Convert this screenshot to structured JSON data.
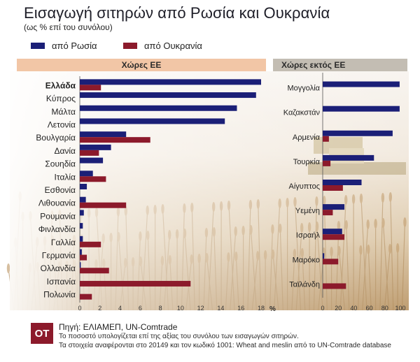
{
  "title": "Εισαγωγή σιτηρών από Ρωσία και Ουκρανία",
  "subtitle": "(ως % επί του συνόλου)",
  "legend": [
    {
      "label": "από Ρωσία",
      "color": "#1b1f77"
    },
    {
      "label": "από Ουκρανία",
      "color": "#8c1a2b"
    }
  ],
  "panels": {
    "eu_title": "Χώρες ΕΕ",
    "non_eu_title": "Χώρες εκτός ΕΕ"
  },
  "chart_data": [
    {
      "type": "bar",
      "orientation": "horizontal",
      "title": "Χώρες ΕΕ",
      "categories": [
        "Ελλάδα",
        "Κύπρος",
        "Μάλτα",
        "Λετονία",
        "Βουλγαρία",
        "Δανία",
        "Σουηδία",
        "Ιταλία",
        "Εσθονία",
        "Λιθουανία",
        "Ρουμανία",
        "Φινλανδία",
        "Γαλλία",
        "Γερμανία",
        "Ολλανδία",
        "Ισπανία",
        "Πολωνία"
      ],
      "highlight_category": "Ελλάδα",
      "series": [
        {
          "name": "από Ρωσία",
          "values": [
            18.0,
            17.5,
            15.6,
            14.4,
            4.6,
            3.1,
            2.3,
            1.3,
            0.7,
            0.6,
            0.4,
            0.3,
            0.3,
            0.2,
            0.1,
            0.0,
            0.0
          ]
        },
        {
          "name": "από Ουκρανία",
          "values": [
            2.1,
            0.0,
            0.0,
            0.0,
            7.0,
            1.9,
            0.0,
            2.6,
            0.0,
            4.6,
            0.0,
            0.0,
            2.1,
            0.7,
            2.9,
            11.0,
            1.2
          ]
        }
      ],
      "xlim": [
        0,
        18
      ],
      "xticks": [
        0,
        2,
        4,
        6,
        8,
        10,
        12,
        14,
        16,
        18
      ],
      "xlabel": "%"
    },
    {
      "type": "bar",
      "orientation": "horizontal",
      "title": "Χώρες εκτός ΕΕ",
      "categories": [
        "Μογγολία",
        "Καζακστάν",
        "Αρμενία",
        "Τουρκία",
        "Αίγυπτος",
        "Υεμένη",
        "Ισραήλ",
        "Μαρόκο",
        "Ταϊλάνδη"
      ],
      "series": [
        {
          "name": "από Ρωσία",
          "values": [
            99,
            99,
            90,
            66,
            50,
            28,
            25,
            2,
            0
          ]
        },
        {
          "name": "από Ουκρανία",
          "values": [
            0,
            0,
            8,
            10,
            26,
            13,
            28,
            20,
            30
          ]
        }
      ],
      "xlim": [
        0,
        100
      ],
      "xticks": [
        0,
        20,
        40,
        60,
        80,
        100
      ]
    }
  ],
  "footer": {
    "logo": "ΟΤ",
    "source": "Πηγή: ΕΛΙΑΜΕΠ, UN-Comtrade",
    "note1": "Το ποσοστό υπολογίζεται επί της αξίας του συνόλου των εισαγωγών σιτηρών.",
    "note2": "Τα στοιχεία αναφέρονται στο 20149 και τον κωδικό 1001: Wheat and meslin από το UN-Comtrade database"
  }
}
